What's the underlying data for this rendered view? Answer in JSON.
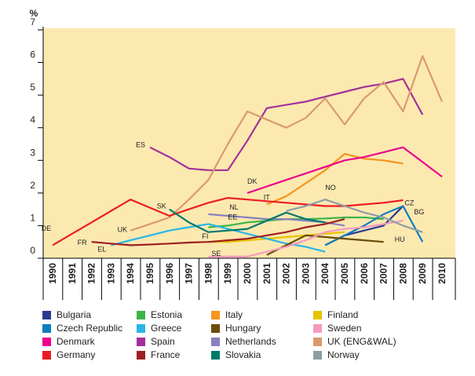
{
  "chart_data": {
    "type": "line",
    "ylabel": "%",
    "ylim": [
      0,
      7
    ],
    "yticks": [
      "0",
      "1",
      "2",
      "3",
      "4",
      "5",
      "6",
      "7"
    ],
    "x": [
      "1990",
      "1991",
      "1992",
      "1993",
      "1994",
      "1995",
      "1996",
      "1997",
      "1998",
      "1999",
      "2000",
      "2001",
      "2002",
      "2003",
      "2004",
      "2005",
      "2006",
      "2007",
      "2008",
      "2009",
      "2010"
    ],
    "background": "#fce9b0",
    "grid": false,
    "legend_position": "bottom",
    "series": [
      {
        "name": "Bulgaria",
        "code": "BG",
        "color": "#2b3990",
        "points": [
          [
            2004,
            0.4
          ],
          [
            2005,
            0.7
          ],
          [
            2006,
            0.85
          ],
          [
            2007,
            1.0
          ],
          [
            2008,
            1.6
          ]
        ]
      },
      {
        "name": "Estonia",
        "code": "EE",
        "color": "#3cb54a",
        "points": [
          [
            1998,
            0.95
          ],
          [
            1999,
            1.0
          ],
          [
            2000,
            1.1
          ],
          [
            2001,
            1.15
          ],
          [
            2002,
            1.2
          ],
          [
            2003,
            1.2
          ],
          [
            2004,
            1.22
          ],
          [
            2005,
            1.25
          ],
          [
            2006,
            1.25
          ],
          [
            2007,
            1.2
          ]
        ]
      },
      {
        "name": "Italy",
        "code": "IT",
        "color": "#f7941d",
        "points": [
          [
            2001,
            1.65
          ],
          [
            2002,
            1.9
          ],
          [
            2003,
            2.3
          ],
          [
            2004,
            2.7
          ],
          [
            2005,
            3.2
          ],
          [
            2006,
            3.05
          ],
          [
            2007,
            3.0
          ],
          [
            2008,
            2.9
          ]
        ]
      },
      {
        "name": "Finland",
        "code": "FI",
        "color": "#e5c400",
        "points": [
          [
            1998,
            0.5
          ],
          [
            1999,
            0.5
          ],
          [
            2000,
            0.55
          ],
          [
            2001,
            0.6
          ],
          [
            2002,
            0.65
          ],
          [
            2003,
            0.7
          ],
          [
            2004,
            0.75
          ],
          [
            2005,
            0.8
          ]
        ]
      },
      {
        "name": "Czech Republic",
        "code": "CZ",
        "color": "#0d7dc1",
        "points": [
          [
            2004,
            0.4
          ],
          [
            2005,
            0.7
          ],
          [
            2006,
            1.0
          ],
          [
            2007,
            1.35
          ],
          [
            2008,
            1.6
          ],
          [
            2009,
            0.5
          ]
        ]
      },
      {
        "name": "Greece",
        "code": "EL",
        "color": "#29b6e8",
        "points": [
          [
            1993,
            0.4
          ],
          [
            1994,
            0.55
          ],
          [
            1995,
            0.7
          ],
          [
            1996,
            0.85
          ],
          [
            1997,
            0.95
          ],
          [
            1998,
            1.05
          ],
          [
            1999,
            0.9
          ],
          [
            2000,
            0.75
          ],
          [
            2001,
            0.6
          ],
          [
            2002,
            0.45
          ],
          [
            2003,
            0.35
          ],
          [
            2004,
            0.2
          ]
        ]
      },
      {
        "name": "Hungary",
        "code": "HU",
        "color": "#6b4c0b",
        "points": [
          [
            2001,
            0.1
          ],
          [
            2002,
            0.4
          ],
          [
            2003,
            0.7
          ],
          [
            2004,
            0.65
          ],
          [
            2005,
            0.6
          ],
          [
            2006,
            0.55
          ],
          [
            2007,
            0.5
          ]
        ]
      },
      {
        "name": "Sweden",
        "code": "SE",
        "color": "#f49ac1",
        "points": [
          [
            1998,
            0.05
          ],
          [
            1999,
            0.05
          ],
          [
            2000,
            0.05
          ],
          [
            2001,
            0.2
          ],
          [
            2002,
            0.35
          ],
          [
            2003,
            0.55
          ],
          [
            2004,
            0.8
          ],
          [
            2005,
            0.9
          ],
          [
            2006,
            0.95
          ],
          [
            2007,
            1.05
          ],
          [
            2008,
            1.15
          ]
        ]
      },
      {
        "name": "Denmark",
        "code": "DK",
        "color": "#ec008c",
        "points": [
          [
            2000,
            2.0
          ],
          [
            2001,
            2.2
          ],
          [
            2002,
            2.4
          ],
          [
            2003,
            2.6
          ],
          [
            2004,
            2.8
          ],
          [
            2005,
            3.0
          ],
          [
            2006,
            3.1
          ],
          [
            2007,
            3.25
          ],
          [
            2008,
            3.4
          ],
          [
            2009,
            2.95
          ],
          [
            2010,
            2.5
          ]
        ]
      },
      {
        "name": "Spain",
        "code": "ES",
        "color": "#a3309a",
        "points": [
          [
            1995,
            3.4
          ],
          [
            1996,
            3.1
          ],
          [
            1997,
            2.75
          ],
          [
            1998,
            2.7
          ],
          [
            1999,
            2.7
          ],
          [
            2000,
            3.6
          ],
          [
            2001,
            4.6
          ],
          [
            2002,
            4.7
          ],
          [
            2003,
            4.8
          ],
          [
            2004,
            4.95
          ],
          [
            2005,
            5.1
          ],
          [
            2006,
            5.25
          ],
          [
            2007,
            5.35
          ],
          [
            2008,
            5.5
          ],
          [
            2009,
            4.4
          ]
        ]
      },
      {
        "name": "Netherlands",
        "code": "NL",
        "color": "#8a7fc1",
        "points": [
          [
            1998,
            1.35
          ],
          [
            1999,
            1.3
          ],
          [
            2000,
            1.25
          ],
          [
            2001,
            1.2
          ],
          [
            2002,
            1.2
          ],
          [
            2003,
            1.15
          ],
          [
            2004,
            1.1
          ],
          [
            2005,
            1.0
          ]
        ]
      },
      {
        "name": "UK (ENG&WAL)",
        "code": "UK",
        "color": "#da9a6d",
        "points": [
          [
            1994,
            0.85
          ],
          [
            1995,
            1.05
          ],
          [
            1996,
            1.25
          ],
          [
            1997,
            1.8
          ],
          [
            1998,
            2.4
          ],
          [
            1999,
            3.5
          ],
          [
            2000,
            4.5
          ],
          [
            2001,
            4.25
          ],
          [
            2002,
            4.0
          ],
          [
            2003,
            4.3
          ],
          [
            2004,
            4.9
          ],
          [
            2005,
            4.1
          ],
          [
            2006,
            4.9
          ],
          [
            2007,
            5.4
          ],
          [
            2008,
            4.5
          ],
          [
            2009,
            6.2
          ],
          [
            2010,
            4.8
          ]
        ]
      },
      {
        "name": "Germany",
        "code": "DE",
        "color": "#ed1c24",
        "points": [
          [
            1990,
            0.4
          ],
          [
            1991,
            0.75
          ],
          [
            1992,
            1.1
          ],
          [
            1993,
            1.45
          ],
          [
            1994,
            1.8
          ],
          [
            1995,
            1.55
          ],
          [
            1996,
            1.3
          ],
          [
            1997,
            1.5
          ],
          [
            1998,
            1.7
          ],
          [
            1999,
            1.85
          ],
          [
            2000,
            1.8
          ],
          [
            2001,
            1.75
          ],
          [
            2002,
            1.7
          ],
          [
            2003,
            1.65
          ],
          [
            2004,
            1.6
          ],
          [
            2005,
            1.6
          ],
          [
            2006,
            1.65
          ],
          [
            2007,
            1.7
          ],
          [
            2008,
            1.78
          ]
        ]
      },
      {
        "name": "France",
        "code": "FR",
        "color": "#9e1f23",
        "points": [
          [
            1992,
            0.5
          ],
          [
            1993,
            0.45
          ],
          [
            1994,
            0.4
          ],
          [
            1995,
            0.42
          ],
          [
            1996,
            0.45
          ],
          [
            1997,
            0.48
          ],
          [
            1998,
            0.5
          ],
          [
            1999,
            0.55
          ],
          [
            2000,
            0.6
          ],
          [
            2001,
            0.7
          ],
          [
            2002,
            0.8
          ],
          [
            2003,
            0.95
          ],
          [
            2004,
            1.05
          ],
          [
            2005,
            1.2
          ]
        ]
      },
      {
        "name": "Slovakia",
        "code": "SK",
        "color": "#00796b",
        "points": [
          [
            1996,
            1.5
          ],
          [
            1997,
            1.1
          ],
          [
            1998,
            0.8
          ],
          [
            1999,
            0.85
          ],
          [
            2000,
            0.9
          ],
          [
            2001,
            1.15
          ],
          [
            2002,
            1.4
          ],
          [
            2003,
            1.2
          ],
          [
            2004,
            1.1
          ]
        ]
      },
      {
        "name": "Norway",
        "code": "NO",
        "color": "#8c9fa6",
        "points": [
          [
            2002,
            1.45
          ],
          [
            2003,
            1.6
          ],
          [
            2004,
            1.8
          ],
          [
            2005,
            1.6
          ],
          [
            2006,
            1.4
          ],
          [
            2007,
            1.25
          ],
          [
            2008,
            1.0
          ],
          [
            2009,
            0.8
          ]
        ]
      }
    ],
    "annotations": [
      "DE",
      "FR",
      "EL",
      "UK",
      "ES",
      "SK",
      "FI",
      "SE",
      "EE",
      "NL",
      "DK",
      "IT",
      "NO",
      "CZ",
      "BG",
      "HU"
    ]
  }
}
